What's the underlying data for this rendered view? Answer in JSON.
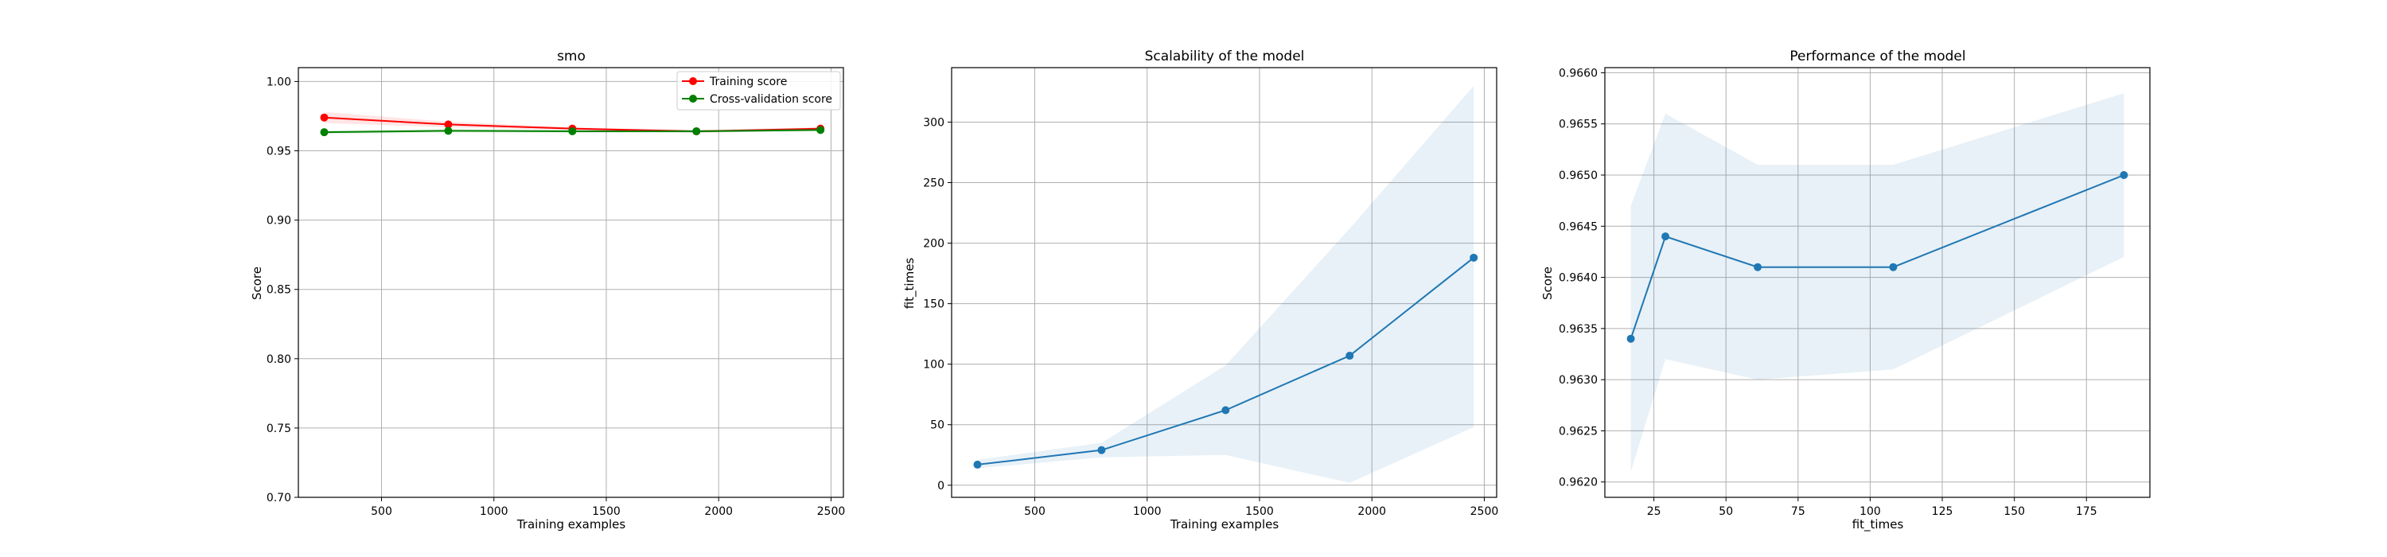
{
  "chart_data": [
    {
      "type": "line",
      "title": "smo",
      "xlabel": "Training examples",
      "ylabel": "Score",
      "xlim": [
        130,
        2555
      ],
      "ylim": [
        0.7,
        1.01
      ],
      "grid": true,
      "legend_position": "top-right",
      "x": [
        245,
        797,
        1349,
        1901,
        2453
      ],
      "x_ticks": [
        {
          "value": 500,
          "label": "500"
        },
        {
          "value": 1000,
          "label": "1000"
        },
        {
          "value": 1500,
          "label": "1500"
        },
        {
          "value": 2000,
          "label": "2000"
        },
        {
          "value": 2500,
          "label": "2500"
        }
      ],
      "y_ticks": [
        {
          "value": 0.7,
          "label": "0.70"
        },
        {
          "value": 0.75,
          "label": "0.75"
        },
        {
          "value": 0.8,
          "label": "0.80"
        },
        {
          "value": 0.85,
          "label": "0.85"
        },
        {
          "value": 0.9,
          "label": "0.90"
        },
        {
          "value": 0.95,
          "label": "0.95"
        },
        {
          "value": 1.0,
          "label": "1.00"
        }
      ],
      "series": [
        {
          "name": "Training score",
          "color": "#ff0000",
          "marker": "circle",
          "values": [
            0.974,
            0.969,
            0.966,
            0.964,
            0.966
          ],
          "band_lower": [
            0.97,
            0.967,
            0.965,
            0.963,
            0.965
          ],
          "band_upper": [
            0.978,
            0.971,
            0.967,
            0.965,
            0.967
          ]
        },
        {
          "name": "Cross-validation score",
          "color": "#008000",
          "marker": "circle",
          "values": [
            0.9634,
            0.9644,
            0.9641,
            0.9641,
            0.965
          ],
          "band_lower": [
            0.9621,
            0.9632,
            0.963,
            0.9631,
            0.9642
          ],
          "band_upper": [
            0.9647,
            0.9656,
            0.9651,
            0.9651,
            0.9658
          ]
        }
      ]
    },
    {
      "type": "line",
      "title": "Scalability of the model",
      "xlabel": "Training examples",
      "ylabel": "fit_times",
      "xlim": [
        130,
        2555
      ],
      "ylim": [
        -10,
        345
      ],
      "grid": true,
      "x": [
        245,
        797,
        1349,
        1901,
        2453
      ],
      "x_ticks": [
        {
          "value": 500,
          "label": "500"
        },
        {
          "value": 1000,
          "label": "1000"
        },
        {
          "value": 1500,
          "label": "1500"
        },
        {
          "value": 2000,
          "label": "2000"
        },
        {
          "value": 2500,
          "label": "2500"
        }
      ],
      "y_ticks": [
        {
          "value": 0,
          "label": "0"
        },
        {
          "value": 50,
          "label": "50"
        },
        {
          "value": 100,
          "label": "100"
        },
        {
          "value": 150,
          "label": "150"
        },
        {
          "value": 200,
          "label": "200"
        },
        {
          "value": 250,
          "label": "250"
        },
        {
          "value": 300,
          "label": "300"
        }
      ],
      "series": [
        {
          "color": "#1f77b4",
          "marker": "circle",
          "values": [
            17,
            29,
            62,
            107,
            188
          ],
          "band_lower": [
            14,
            23,
            25,
            2,
            48
          ],
          "band_upper": [
            21,
            35,
            99,
            212,
            330
          ]
        }
      ]
    },
    {
      "type": "line",
      "title": "Performance of the model",
      "xlabel": "fit_times",
      "ylabel": "Score",
      "xlim": [
        8,
        197
      ],
      "ylim": [
        0.96185,
        0.96605
      ],
      "grid": true,
      "x": [
        17,
        29,
        61,
        108,
        188
      ],
      "x_ticks": [
        {
          "value": 25,
          "label": "25"
        },
        {
          "value": 50,
          "label": "50"
        },
        {
          "value": 75,
          "label": "75"
        },
        {
          "value": 100,
          "label": "100"
        },
        {
          "value": 125,
          "label": "125"
        },
        {
          "value": 150,
          "label": "150"
        },
        {
          "value": 175,
          "label": "175"
        }
      ],
      "y_ticks": [
        {
          "value": 0.962,
          "label": "0.9620"
        },
        {
          "value": 0.9625,
          "label": "0.9625"
        },
        {
          "value": 0.963,
          "label": "0.9630"
        },
        {
          "value": 0.9635,
          "label": "0.9635"
        },
        {
          "value": 0.964,
          "label": "0.9640"
        },
        {
          "value": 0.9645,
          "label": "0.9645"
        },
        {
          "value": 0.965,
          "label": "0.9650"
        },
        {
          "value": 0.9655,
          "label": "0.9655"
        },
        {
          "value": 0.966,
          "label": "0.9660"
        }
      ],
      "series": [
        {
          "color": "#1f77b4",
          "marker": "circle",
          "values": [
            0.9634,
            0.9644,
            0.9641,
            0.9641,
            0.965
          ],
          "band_lower": [
            0.9621,
            0.9632,
            0.963,
            0.9631,
            0.9642
          ],
          "band_upper": [
            0.9647,
            0.9656,
            0.9651,
            0.9651,
            0.9658
          ]
        }
      ]
    }
  ]
}
